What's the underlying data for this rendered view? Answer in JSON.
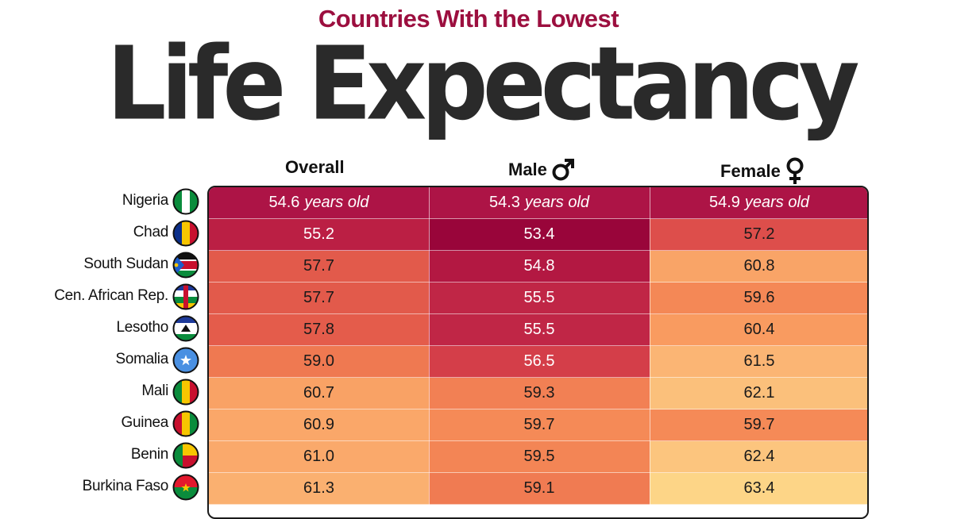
{
  "chart_data": {
    "type": "table",
    "subtitle": "Countries With the Lowest",
    "title": "Life Expectancy",
    "columns": [
      {
        "key": "overall",
        "label": "Overall",
        "symbol": ""
      },
      {
        "key": "male",
        "label": "Male",
        "symbol": "male-symbol-icon"
      },
      {
        "key": "female",
        "label": "Female",
        "symbol": "female-symbol-icon"
      }
    ],
    "unit_label": "years old",
    "rows": [
      {
        "country": "Nigeria",
        "flag": "nigeria-flag-icon",
        "overall": "54.6",
        "male": "54.3",
        "female": "54.9"
      },
      {
        "country": "Chad",
        "flag": "chad-flag-icon",
        "overall": "55.2",
        "male": "53.4",
        "female": "57.2"
      },
      {
        "country": "South Sudan",
        "flag": "south-sudan-flag-icon",
        "overall": "57.7",
        "male": "54.8",
        "female": "60.8"
      },
      {
        "country": "Cen. African Rep.",
        "flag": "central-african-republic-flag-icon",
        "overall": "57.7",
        "male": "55.5",
        "female": "59.6"
      },
      {
        "country": "Lesotho",
        "flag": "lesotho-flag-icon",
        "overall": "57.8",
        "male": "55.5",
        "female": "60.4"
      },
      {
        "country": "Somalia",
        "flag": "somalia-flag-icon",
        "overall": "59.0",
        "male": "56.5",
        "female": "61.5"
      },
      {
        "country": "Mali",
        "flag": "mali-flag-icon",
        "overall": "60.7",
        "male": "59.3",
        "female": "62.1"
      },
      {
        "country": "Guinea",
        "flag": "guinea-flag-icon",
        "overall": "60.9",
        "male": "59.7",
        "female": "59.7"
      },
      {
        "country": "Benin",
        "flag": "benin-flag-icon",
        "overall": "61.0",
        "male": "59.5",
        "female": "62.4"
      },
      {
        "country": "Burkina Faso",
        "flag": "burkina-faso-flag-icon",
        "overall": "61.3",
        "male": "59.1",
        "female": "63.4"
      }
    ],
    "color_scale": {
      "low_value": 53.4,
      "high_value": 63.4,
      "stops": [
        "#99053a",
        "#b81c44",
        "#d8434a",
        "#ea6a4c",
        "#f8935a",
        "#fbba78",
        "#fdd587"
      ]
    }
  }
}
